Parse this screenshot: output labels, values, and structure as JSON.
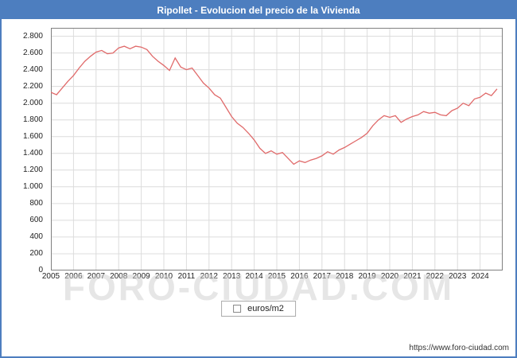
{
  "title_bar": {
    "title": "Ripollet - Evolucion del precio de la Vivienda",
    "bg_color": "#4d7ebf"
  },
  "watermark": "FORO-CIUDAD.COM",
  "legend": {
    "label": "euros/m2"
  },
  "footer": {
    "url": "https://www.foro-ciudad.com"
  },
  "chart_data": {
    "type": "line",
    "title": "Ripollet - Evolucion del precio de la Vivienda",
    "xlabel": "",
    "ylabel": "euros/m2",
    "ylim": [
      0,
      2900
    ],
    "grid": true,
    "legend_position": "bottom-center",
    "line_color": "#e06a6a",
    "grid_color": "#dcdcdc",
    "border_color": "#808080",
    "y_ticks": [
      {
        "v": 0,
        "label": "0"
      },
      {
        "v": 200,
        "label": "200"
      },
      {
        "v": 400,
        "label": "400"
      },
      {
        "v": 600,
        "label": "600"
      },
      {
        "v": 800,
        "label": "800"
      },
      {
        "v": 1000,
        "label": "1.000"
      },
      {
        "v": 1200,
        "label": "1.200"
      },
      {
        "v": 1400,
        "label": "1.400"
      },
      {
        "v": 1600,
        "label": "1.600"
      },
      {
        "v": 1800,
        "label": "1.800"
      },
      {
        "v": 2000,
        "label": "2.000"
      },
      {
        "v": 2200,
        "label": "2.200"
      },
      {
        "v": 2400,
        "label": "2.400"
      },
      {
        "v": 2600,
        "label": "2.600"
      },
      {
        "v": 2800,
        "label": "2.800"
      }
    ],
    "x_labels": [
      "2005",
      "2006",
      "2007",
      "2008",
      "2009",
      "2010",
      "2011",
      "2012",
      "2013",
      "2014",
      "2015",
      "2016",
      "2017",
      "2018",
      "2019",
      "2020",
      "2021",
      "2022",
      "2023",
      "2024"
    ],
    "points_per_year": 4,
    "series": [
      {
        "name": "euros/m2",
        "values": [
          2130,
          2100,
          2180,
          2260,
          2330,
          2420,
          2500,
          2560,
          2610,
          2630,
          2590,
          2600,
          2660,
          2680,
          2650,
          2680,
          2670,
          2640,
          2560,
          2500,
          2450,
          2390,
          2540,
          2430,
          2400,
          2420,
          2330,
          2240,
          2180,
          2100,
          2060,
          1950,
          1840,
          1760,
          1710,
          1640,
          1560,
          1460,
          1400,
          1430,
          1390,
          1410,
          1340,
          1270,
          1310,
          1290,
          1320,
          1340,
          1370,
          1420,
          1390,
          1440,
          1470,
          1510,
          1550,
          1590,
          1640,
          1730,
          1800,
          1850,
          1830,
          1850,
          1770,
          1810,
          1840,
          1860,
          1900,
          1880,
          1890,
          1860,
          1850,
          1910,
          1940,
          2000,
          1970,
          2050,
          2070,
          2120,
          2090,
          2170
        ]
      }
    ]
  }
}
